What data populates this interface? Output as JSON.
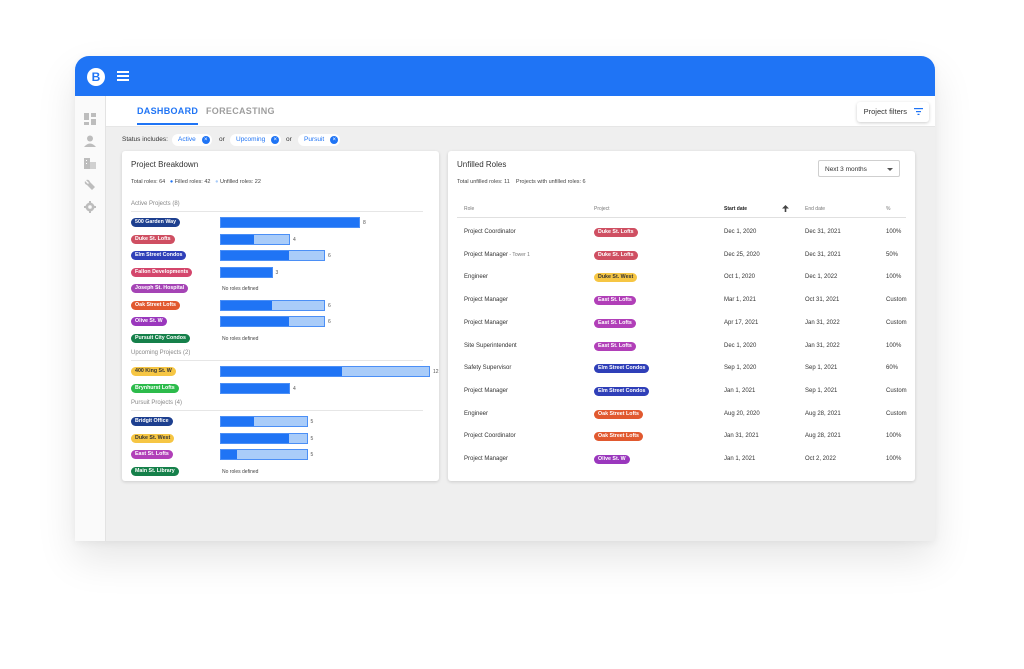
{
  "app": {
    "logo_letter": "B",
    "accent_color": "#1f74f5"
  },
  "sidebar": {
    "icons": [
      "dashboard-icon",
      "person-icon",
      "building-icon",
      "wrench-icon",
      "gear-icon"
    ]
  },
  "tabs": [
    {
      "label": "DASHBOARD",
      "active": true
    },
    {
      "label": "FORECASTING",
      "active": false
    }
  ],
  "project_filters_label": "Project filters",
  "status_filter": {
    "label": "Status includes:",
    "connector": "or",
    "chips": [
      "Active",
      "Upcoming",
      "Pursuit"
    ]
  },
  "breakdown": {
    "title": "Project Breakdown",
    "total_roles": "Total roles: 64",
    "filled_roles": "Filled roles: 42",
    "unfilled_roles": "Unfilled roles: 22",
    "no_roles_text": "No roles defined",
    "sections": [
      {
        "label": "Active Projects (8)",
        "projects": [
          {
            "name": "500 Garden Way",
            "color": "#1d3f8f",
            "total": 8,
            "filled": 8
          },
          {
            "name": "Duke St. Lofts",
            "color": "#cf4f62",
            "total": 4,
            "filled": 2
          },
          {
            "name": "Elm Street Condos",
            "color": "#2f3fb8",
            "total": 6,
            "filled": 4
          },
          {
            "name": "Fallon Developments",
            "color": "#d4466c",
            "total": 3,
            "filled": 3
          },
          {
            "name": "Joseph St. Hospital",
            "color": "#a544b5",
            "total": 0,
            "filled": 0
          },
          {
            "name": "Oak Street Lofts",
            "color": "#e1592f",
            "total": 6,
            "filled": 3
          },
          {
            "name": "Olive St. W",
            "color": "#9a37bd",
            "total": 6,
            "filled": 4
          },
          {
            "name": "Pursuit City Condos",
            "color": "#15804a",
            "total": 0,
            "filled": 0
          }
        ]
      },
      {
        "label": "Upcoming Projects (2)",
        "projects": [
          {
            "name": "400 King St. W",
            "color": "#f6c644",
            "text_color": "#333",
            "total": 12,
            "filled": 7
          },
          {
            "name": "Brynhurst Lofts",
            "color": "#2cbb4b",
            "total": 4,
            "filled": 4
          }
        ]
      },
      {
        "label": "Pursuit Projects (4)",
        "projects": [
          {
            "name": "Bridgit Office",
            "color": "#1d3f8f",
            "total": 5,
            "filled": 2
          },
          {
            "name": "Duke St. West",
            "color": "#f6c644",
            "text_color": "#333",
            "total": 5,
            "filled": 4
          },
          {
            "name": "East St. Lofts",
            "color": "#b13fb8",
            "total": 5,
            "filled": 1
          },
          {
            "name": "Main St. Library",
            "color": "#15804a",
            "total": 0,
            "filled": 0
          }
        ]
      }
    ]
  },
  "unfilled": {
    "title": "Unfilled Roles",
    "total_unfilled": "Total unfilled roles: 11",
    "projects_unfilled": "Projects with unfilled roles: 6",
    "range_select": "Next 3 months",
    "headers": {
      "role": "Role",
      "project": "Project",
      "start": "Start date",
      "end": "End date",
      "pct": "%"
    },
    "rows": [
      {
        "role": "Project Coordinator",
        "sub": "",
        "project": "Duke St. Lofts",
        "color": "#cf4f62",
        "start": "Dec 1, 2020",
        "end": "Dec 31, 2021",
        "pct": "100%"
      },
      {
        "role": "Project Manager",
        "sub": " - Tower 1",
        "project": "Duke St. Lofts",
        "color": "#cf4f62",
        "start": "Dec 25, 2020",
        "end": "Dec 31, 2021",
        "pct": "50%"
      },
      {
        "role": "Engineer",
        "sub": "",
        "project": "Duke St. West",
        "color": "#f6c644",
        "text_color": "#333",
        "start": "Oct 1, 2020",
        "end": "Dec 1, 2022",
        "pct": "100%"
      },
      {
        "role": "Project Manager",
        "sub": "",
        "project": "East St. Lofts",
        "color": "#b13fb8",
        "start": "Mar 1, 2021",
        "end": "Oct 31, 2021",
        "pct": "Custom"
      },
      {
        "role": "Project Manager",
        "sub": "",
        "project": "East St. Lofts",
        "color": "#b13fb8",
        "start": "Apr 17, 2021",
        "end": "Jan 31, 2022",
        "pct": "Custom"
      },
      {
        "role": "Site Superintendent",
        "sub": "",
        "project": "East St. Lofts",
        "color": "#b13fb8",
        "start": "Dec 1, 2020",
        "end": "Jan 31, 2022",
        "pct": "100%"
      },
      {
        "role": "Safety Supervisor",
        "sub": "",
        "project": "Elm Street Condos",
        "color": "#2f3fb8",
        "start": "Sep 1, 2020",
        "end": "Sep 1, 2021",
        "pct": "60%"
      },
      {
        "role": "Project Manager",
        "sub": "",
        "project": "Elm Street Condos",
        "color": "#2f3fb8",
        "start": "Jan 1, 2021",
        "end": "Sep 1, 2021",
        "pct": "Custom"
      },
      {
        "role": "Engineer",
        "sub": "",
        "project": "Oak Street Lofts",
        "color": "#e1592f",
        "start": "Aug 20, 2020",
        "end": "Aug 28, 2021",
        "pct": "Custom"
      },
      {
        "role": "Project Coordinator",
        "sub": "",
        "project": "Oak Street Lofts",
        "color": "#e1592f",
        "start": "Jan 31, 2021",
        "end": "Aug 28, 2021",
        "pct": "100%"
      },
      {
        "role": "Project Manager",
        "sub": "",
        "project": "Olive St. W",
        "color": "#9a37bd",
        "start": "Jan 1, 2021",
        "end": "Oct 2, 2022",
        "pct": "100%"
      }
    ]
  }
}
